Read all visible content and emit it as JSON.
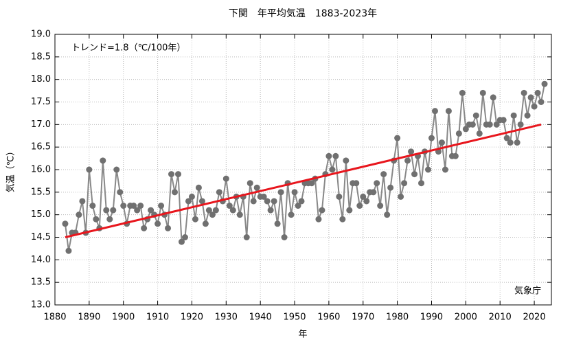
{
  "chart_data": {
    "type": "line",
    "title": "下関　年平均気温　1883-2023年",
    "xlabel": "年",
    "ylabel": "気温（℃）",
    "annotation": "トレンド=1.8（℃/100年）",
    "source": "気象庁",
    "x": [
      1883,
      1884,
      1885,
      1886,
      1887,
      1888,
      1889,
      1890,
      1891,
      1892,
      1893,
      1894,
      1895,
      1896,
      1897,
      1898,
      1899,
      1900,
      1901,
      1902,
      1903,
      1904,
      1905,
      1906,
      1907,
      1908,
      1909,
      1910,
      1911,
      1912,
      1913,
      1914,
      1915,
      1916,
      1917,
      1918,
      1919,
      1920,
      1921,
      1922,
      1923,
      1924,
      1925,
      1926,
      1927,
      1928,
      1929,
      1930,
      1931,
      1932,
      1933,
      1934,
      1935,
      1936,
      1937,
      1938,
      1939,
      1940,
      1941,
      1942,
      1943,
      1944,
      1945,
      1946,
      1947,
      1948,
      1949,
      1950,
      1951,
      1952,
      1953,
      1954,
      1955,
      1956,
      1957,
      1958,
      1959,
      1960,
      1961,
      1962,
      1963,
      1964,
      1965,
      1966,
      1967,
      1968,
      1969,
      1970,
      1971,
      1972,
      1973,
      1974,
      1975,
      1976,
      1977,
      1978,
      1979,
      1980,
      1981,
      1982,
      1983,
      1984,
      1985,
      1986,
      1987,
      1988,
      1989,
      1990,
      1991,
      1992,
      1993,
      1994,
      1995,
      1996,
      1997,
      1998,
      1999,
      2000,
      2001,
      2002,
      2003,
      2004,
      2005,
      2006,
      2007,
      2008,
      2009,
      2010,
      2011,
      2012,
      2013,
      2014,
      2015,
      2016,
      2017,
      2018,
      2019,
      2020,
      2021,
      2022,
      2023
    ],
    "series": [
      {
        "color": "#707070",
        "values": [
          14.8,
          14.2,
          14.6,
          14.6,
          15.0,
          15.3,
          14.6,
          16.0,
          15.2,
          14.9,
          14.7,
          16.2,
          15.1,
          14.9,
          15.1,
          16.0,
          15.5,
          15.2,
          14.8,
          15.2,
          15.2,
          15.1,
          15.2,
          14.7,
          14.9,
          15.1,
          15.0,
          14.8,
          15.2,
          15.0,
          14.7,
          15.9,
          15.5,
          15.9,
          14.4,
          14.5,
          15.3,
          15.4,
          14.9,
          15.6,
          15.3,
          14.8,
          15.1,
          15.0,
          15.1,
          15.5,
          15.3,
          15.8,
          15.2,
          15.1,
          15.4,
          15.0,
          15.4,
          14.5,
          15.7,
          15.3,
          15.6,
          15.4,
          15.4,
          15.3,
          15.1,
          15.3,
          14.8,
          15.5,
          14.5,
          15.7,
          15.0,
          15.5,
          15.2,
          15.3,
          15.7,
          15.7,
          15.7,
          15.8,
          14.9,
          15.1,
          15.9,
          16.3,
          16.0,
          16.3,
          15.4,
          14.9,
          16.2,
          15.1,
          15.7,
          15.7,
          15.2,
          15.4,
          15.3,
          15.5,
          15.5,
          15.7,
          15.2,
          15.9,
          15.0,
          15.6,
          16.2,
          16.7,
          15.4,
          15.7,
          16.2,
          16.4,
          15.9,
          16.3,
          15.7,
          16.4,
          16.0,
          16.7,
          17.3,
          16.4,
          16.6,
          16.0,
          17.3,
          16.3,
          16.3,
          16.8,
          17.7,
          16.9,
          17.0,
          17.0,
          17.2,
          16.8,
          17.7,
          17.0,
          17.0,
          17.6,
          17.0,
          17.1,
          17.1,
          16.7,
          16.6,
          17.2,
          16.6,
          17.0,
          17.7,
          17.2,
          17.6,
          17.4,
          17.7,
          17.5,
          17.9
        ]
      }
    ],
    "trend": {
      "color": "#e8161d",
      "x": [
        1883,
        2022
      ],
      "values": [
        14.5,
        17.0
      ]
    },
    "xlim": [
      1880,
      2025
    ],
    "ylim": [
      13.0,
      19.0
    ],
    "xticks": [
      1880,
      1890,
      1900,
      1910,
      1920,
      1930,
      1940,
      1950,
      1960,
      1970,
      1980,
      1990,
      2000,
      2010,
      2020
    ],
    "yticks": [
      {
        "value": 13,
        "label": "13.0"
      },
      13.5,
      {
        "value": 14,
        "label": "14.0"
      },
      14.5,
      {
        "value": 15,
        "label": "15.0"
      },
      15.5,
      {
        "value": 16,
        "label": "16.0"
      },
      16.5,
      {
        "value": 17,
        "label": "17.0"
      },
      17.5,
      {
        "value": 18,
        "label": "18.0"
      },
      18.5,
      {
        "value": 19,
        "label": "19.0"
      }
    ],
    "grid": true
  }
}
